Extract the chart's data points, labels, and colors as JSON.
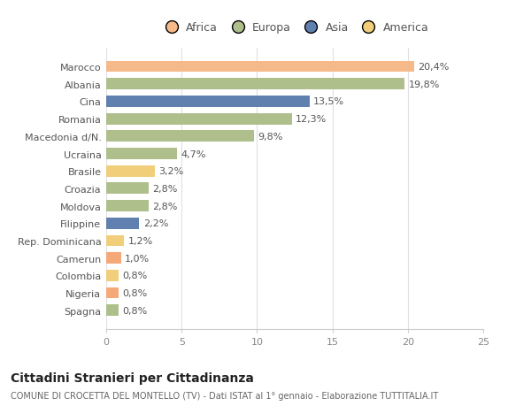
{
  "categories": [
    "Marocco",
    "Albania",
    "Cina",
    "Romania",
    "Macedonia d/N.",
    "Ucraina",
    "Brasile",
    "Croazia",
    "Moldova",
    "Filippine",
    "Rep. Dominicana",
    "Camerun",
    "Colombia",
    "Nigeria",
    "Spagna"
  ],
  "values": [
    20.4,
    19.8,
    13.5,
    12.3,
    9.8,
    4.7,
    3.2,
    2.8,
    2.8,
    2.2,
    1.2,
    1.0,
    0.8,
    0.8,
    0.8
  ],
  "labels": [
    "20,4%",
    "19,8%",
    "13,5%",
    "12,3%",
    "9,8%",
    "4,7%",
    "3,2%",
    "2,8%",
    "2,8%",
    "2,2%",
    "1,2%",
    "1,0%",
    "0,8%",
    "0,8%",
    "0,8%"
  ],
  "colors": [
    "#F5B98A",
    "#AEBF8C",
    "#6080B0",
    "#AEBF8C",
    "#AEBF8C",
    "#AEBF8C",
    "#F0CE7A",
    "#AEBF8C",
    "#AEBF8C",
    "#6080B0",
    "#F0CE7A",
    "#F5A878",
    "#F0CE7A",
    "#F5A878",
    "#AEBF8C"
  ],
  "continent_colors": {
    "Africa": "#F5B98A",
    "Europa": "#AEBF8C",
    "Asia": "#6080B0",
    "America": "#F0CE7A"
  },
  "xlim": [
    0,
    25
  ],
  "xticks": [
    0,
    5,
    10,
    15,
    20,
    25
  ],
  "title": "Cittadini Stranieri per Cittadinanza",
  "subtitle": "COMUNE DI CROCETTA DEL MONTELLO (TV) - Dati ISTAT al 1° gennaio - Elaborazione TUTTITALIA.IT",
  "bg_color": "#ffffff",
  "bar_height": 0.65,
  "label_fontsize": 8,
  "title_fontsize": 10,
  "subtitle_fontsize": 7,
  "tick_fontsize": 8,
  "legend_fontsize": 9
}
